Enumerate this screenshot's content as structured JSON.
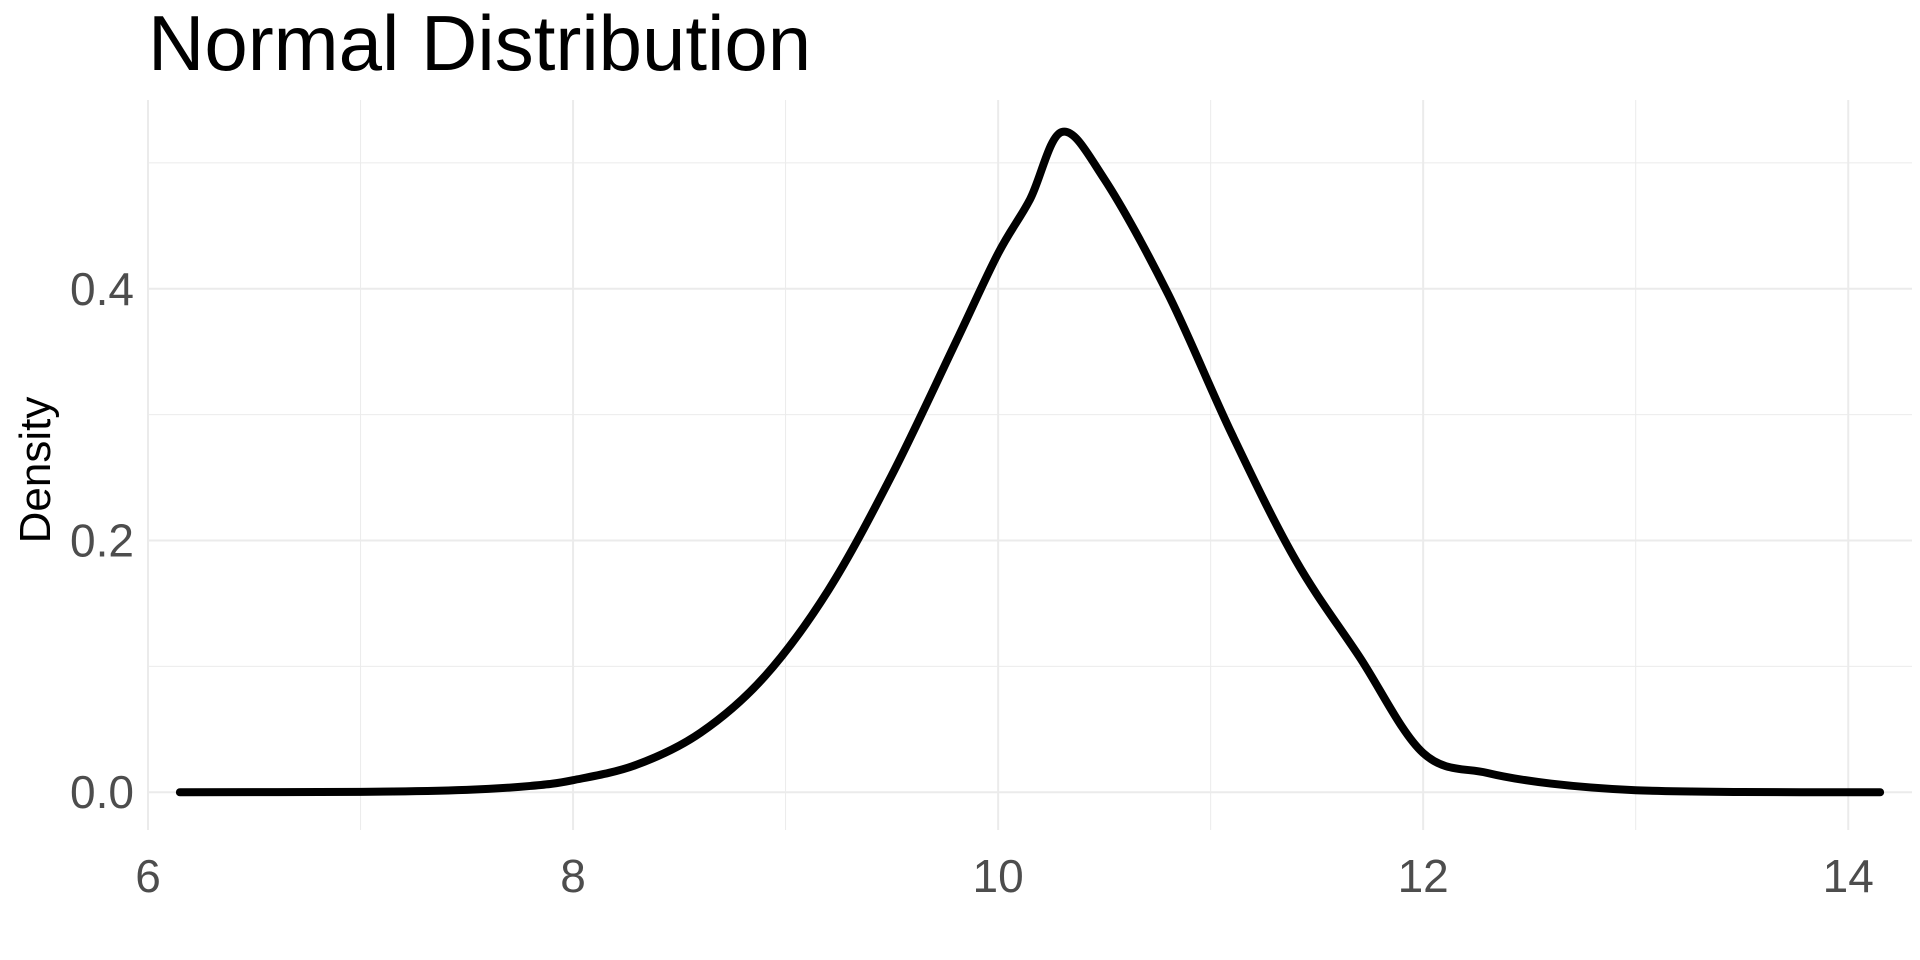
{
  "chart_data": {
    "type": "line",
    "title": "Normal Distribution",
    "xlabel": "",
    "ylabel": "Density",
    "xlim": [
      6.0,
      14.3
    ],
    "ylim": [
      -0.03,
      0.55
    ],
    "x_ticks": [
      6,
      8,
      10,
      12,
      14
    ],
    "y_ticks": [
      0.0,
      0.2,
      0.4
    ],
    "x_tick_labels": [
      "6",
      "8",
      "10",
      "12",
      "14"
    ],
    "y_tick_labels": [
      "0.0",
      "0.2",
      "0.4"
    ],
    "grid": true,
    "legend": "none",
    "colors": {
      "line": "#000000",
      "grid": "#ebebeb",
      "tick_text": "#4d4d4d",
      "background": "#ffffff"
    },
    "series": [
      {
        "x": [
          6.15,
          7.0,
          7.5,
          7.8,
          8.0,
          8.3,
          8.6,
          8.9,
          9.2,
          9.5,
          9.8,
          10.0,
          10.15,
          10.3,
          10.5,
          10.8,
          11.1,
          11.4,
          11.7,
          12.0,
          12.3,
          12.6,
          13.0,
          13.5,
          14.15
        ],
        "y": [
          0.0,
          0.0003,
          0.0019,
          0.005,
          0.0096,
          0.0219,
          0.0473,
          0.0917,
          0.1602,
          0.252,
          0.3572,
          0.4281,
          0.471,
          0.5246,
          0.4871,
          0.3958,
          0.2845,
          0.1844,
          0.1076,
          0.0311,
          0.0154,
          0.0069,
          0.0016,
          0.0002,
          0.0
        ]
      }
    ]
  }
}
